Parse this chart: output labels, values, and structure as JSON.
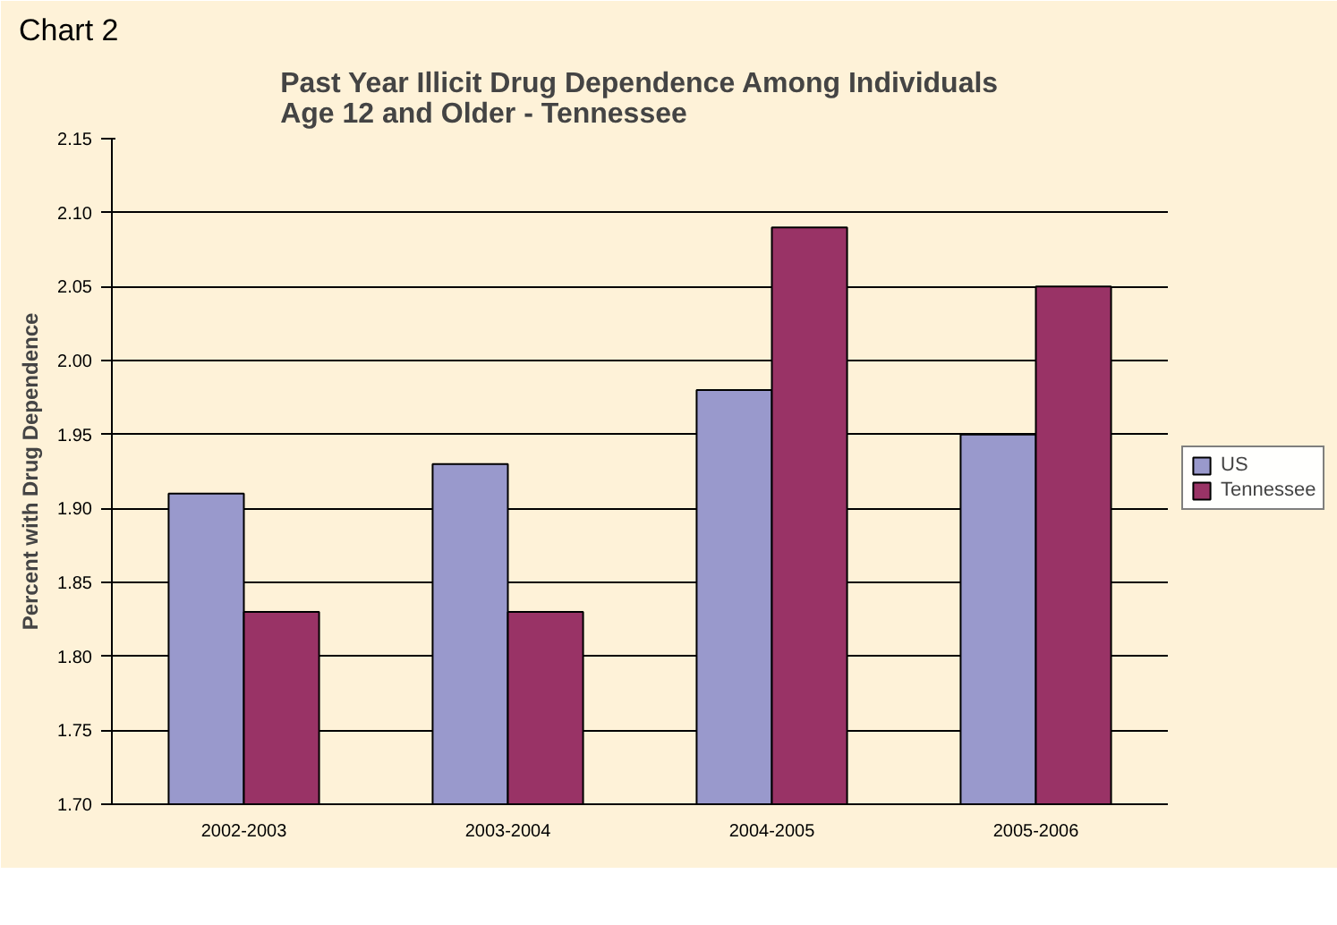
{
  "chart_data": {
    "type": "bar",
    "title": "Past Year Illicit Drug Dependence Among Individuals Age 12 and Older - Tennessee",
    "ylabel": "Percent with Drug Dependence",
    "annotations": [
      "Chart 2"
    ],
    "categories": [
      "2002-2003",
      "2003-2004",
      "2004-2005",
      "2005-2006"
    ],
    "series": [
      {
        "name": "US",
        "color": "#9999cc",
        "values": [
          1.91,
          1.93,
          1.98,
          1.95
        ]
      },
      {
        "name": "Tennessee",
        "color": "#993366",
        "values": [
          1.83,
          1.83,
          2.09,
          2.05
        ]
      }
    ],
    "ylim": [
      1.7,
      2.15
    ],
    "yticks": [
      {
        "value": 1.7,
        "label": "1.70"
      },
      {
        "value": 1.75,
        "label": "1.75"
      },
      {
        "value": 1.8,
        "label": "1.80"
      },
      {
        "value": 1.85,
        "label": "1.85"
      },
      {
        "value": 1.9,
        "label": "1.90"
      },
      {
        "value": 1.95,
        "label": "1.95"
      },
      {
        "value": 2.0,
        "label": "2.00"
      },
      {
        "value": 2.05,
        "label": "2.05"
      },
      {
        "value": 2.1,
        "label": "2.10"
      },
      {
        "value": 2.15,
        "label": "2.15"
      }
    ],
    "grid": "y",
    "legend": "right"
  }
}
